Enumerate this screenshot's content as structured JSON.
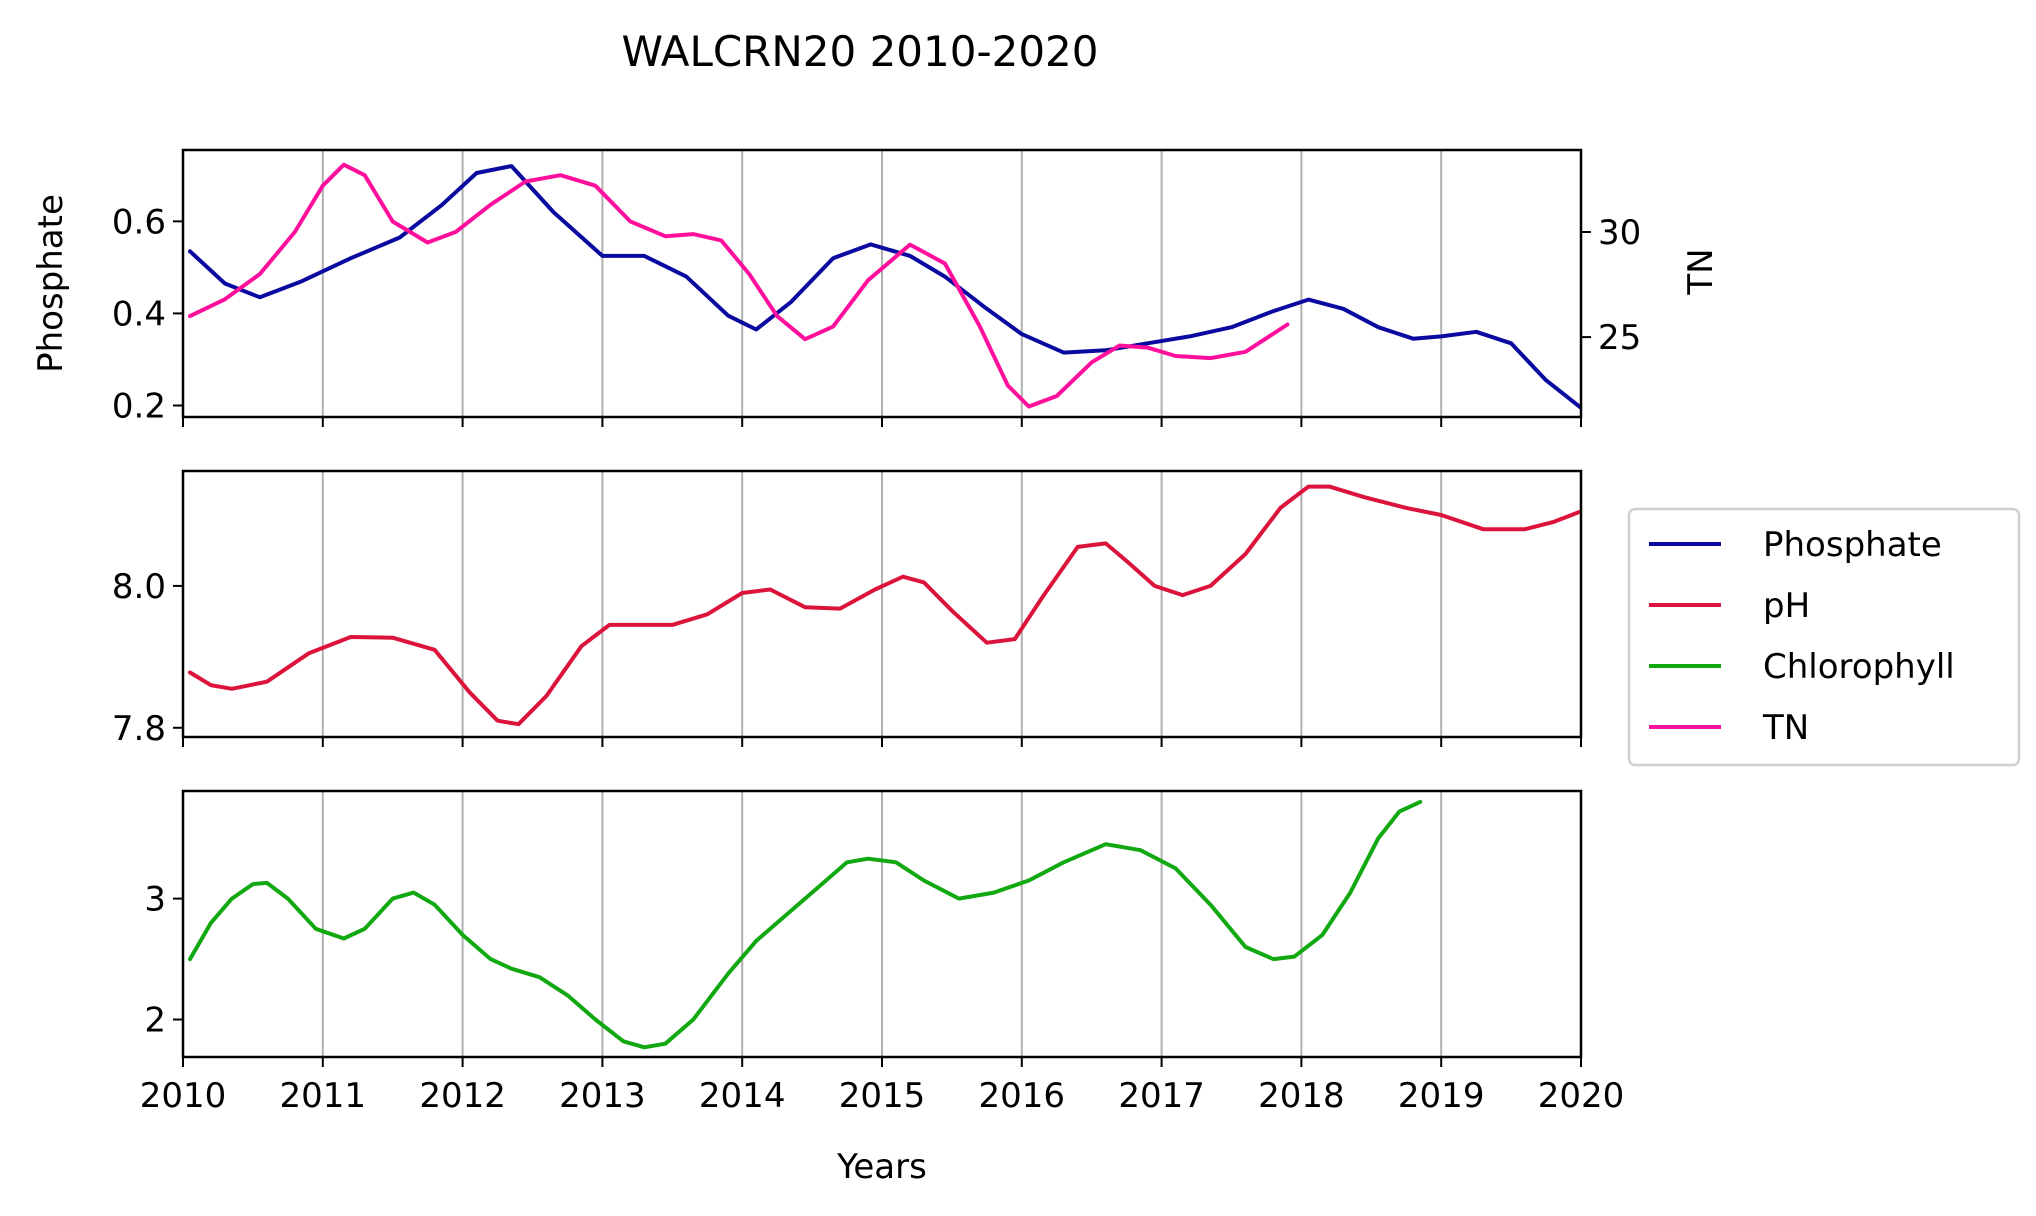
{
  "chart_data": {
    "type": "line",
    "title": "WALCRN20 2010-2020",
    "xlabel": "Years",
    "xlim": [
      2010,
      2020
    ],
    "xticks": [
      2010,
      2011,
      2012,
      2013,
      2014,
      2015,
      2016,
      2017,
      2018,
      2019,
      2020
    ],
    "xtick_labels": [
      "2010",
      "2011",
      "2012",
      "2013",
      "2014",
      "2015",
      "2016",
      "2017",
      "2018",
      "2019",
      "2020"
    ],
    "grid": "vertical",
    "legend": {
      "placement": "right",
      "entries": [
        {
          "label": "Phosphate",
          "color": "#0a0aa0"
        },
        {
          "label": "pH",
          "color": "#dc143c"
        },
        {
          "label": "Chlorophyll",
          "color": "#12a812"
        },
        {
          "label": "TN",
          "color": "#ff0f9c"
        }
      ]
    },
    "panels": [
      {
        "ylabel": "Phosphate",
        "ylim": [
          0.175,
          0.755
        ],
        "yticks": [
          0.2,
          0.4,
          0.6
        ],
        "ytick_labels": [
          "0.2",
          "0.4",
          "0.6"
        ],
        "secondary_axis": {
          "ylabel": "TN",
          "ylim": [
            21.2,
            33.9
          ],
          "yticks": [
            25,
            30
          ],
          "ytick_labels": [
            "25",
            "30"
          ]
        },
        "series": [
          {
            "name": "Phosphate",
            "color": "#0a0aa0",
            "axis": "left",
            "x": [
              2010.05,
              2010.3,
              2010.55,
              2010.85,
              2011.2,
              2011.55,
              2011.85,
              2012.1,
              2012.35,
              2012.65,
              2013.0,
              2013.3,
              2013.6,
              2013.9,
              2014.1,
              2014.35,
              2014.65,
              2014.92,
              2015.2,
              2015.45,
              2015.75,
              2016.0,
              2016.3,
              2016.6,
              2016.9,
              2017.2,
              2017.5,
              2017.8,
              2018.05,
              2018.3,
              2018.55,
              2018.8,
              2019.0,
              2019.25,
              2019.5,
              2019.75,
              2020.0
            ],
            "y": [
              0.535,
              0.465,
              0.435,
              0.47,
              0.52,
              0.565,
              0.635,
              0.705,
              0.72,
              0.62,
              0.525,
              0.525,
              0.48,
              0.395,
              0.365,
              0.425,
              0.52,
              0.55,
              0.525,
              0.48,
              0.41,
              0.355,
              0.315,
              0.32,
              0.335,
              0.35,
              0.37,
              0.405,
              0.43,
              0.41,
              0.37,
              0.345,
              0.35,
              0.36,
              0.335,
              0.255,
              0.195
            ]
          },
          {
            "name": "TN",
            "color": "#ff0f9c",
            "axis": "right",
            "x": [
              2010.05,
              2010.3,
              2010.55,
              2010.8,
              2011.0,
              2011.15,
              2011.3,
              2011.5,
              2011.75,
              2011.95,
              2012.2,
              2012.45,
              2012.7,
              2012.95,
              2013.2,
              2013.45,
              2013.65,
              2013.85,
              2014.05,
              2014.25,
              2014.45,
              2014.65,
              2014.9,
              2015.2,
              2015.45,
              2015.7,
              2015.9,
              2016.05,
              2016.25,
              2016.5,
              2016.7,
              2016.9,
              2017.1,
              2017.35,
              2017.6,
              2017.9
            ],
            "y": [
              26.0,
              26.8,
              28.0,
              30.0,
              32.2,
              33.2,
              32.7,
              30.5,
              29.5,
              30.0,
              31.3,
              32.4,
              32.7,
              32.2,
              30.5,
              29.8,
              29.9,
              29.6,
              28.0,
              26.0,
              24.9,
              25.5,
              27.7,
              29.4,
              28.5,
              25.5,
              22.7,
              21.7,
              22.2,
              23.8,
              24.6,
              24.5,
              24.1,
              24.0,
              24.3,
              25.6
            ]
          }
        ]
      },
      {
        "ylabel": "",
        "ylim": [
          7.787,
          8.162
        ],
        "yticks": [
          7.8,
          8.0
        ],
        "ytick_labels": [
          "7.8",
          "8.0"
        ],
        "series": [
          {
            "name": "pH",
            "color": "#dc143c",
            "axis": "left",
            "x": [
              2010.05,
              2010.2,
              2010.35,
              2010.6,
              2010.9,
              2011.2,
              2011.5,
              2011.8,
              2012.05,
              2012.25,
              2012.4,
              2012.6,
              2012.85,
              2013.05,
              2013.25,
              2013.5,
              2013.75,
              2014.0,
              2014.2,
              2014.45,
              2014.7,
              2014.95,
              2015.15,
              2015.3,
              2015.5,
              2015.75,
              2015.95,
              2016.15,
              2016.4,
              2016.6,
              2016.75,
              2016.95,
              2017.15,
              2017.35,
              2017.6,
              2017.85,
              2018.05,
              2018.2,
              2018.45,
              2018.75,
              2019.0,
              2019.3,
              2019.6,
              2019.8,
              2020.0
            ],
            "y": [
              7.878,
              7.86,
              7.855,
              7.865,
              7.905,
              7.928,
              7.927,
              7.91,
              7.85,
              7.81,
              7.805,
              7.845,
              7.915,
              7.945,
              7.945,
              7.945,
              7.96,
              7.99,
              7.995,
              7.97,
              7.968,
              7.995,
              8.013,
              8.005,
              7.965,
              7.92,
              7.925,
              7.985,
              8.055,
              8.06,
              8.035,
              8.0,
              7.987,
              8.0,
              8.045,
              8.11,
              8.14,
              8.14,
              8.125,
              8.11,
              8.1,
              8.08,
              8.08,
              8.09,
              8.105
            ]
          }
        ]
      },
      {
        "ylabel": "",
        "ylim": [
          1.69,
          3.89
        ],
        "yticks": [
          2,
          3
        ],
        "ytick_labels": [
          "2",
          "3"
        ],
        "series": [
          {
            "name": "Chlorophyll",
            "color": "#12a812",
            "axis": "left",
            "x": [
              2010.05,
              2010.2,
              2010.35,
              2010.5,
              2010.6,
              2010.75,
              2010.95,
              2011.15,
              2011.3,
              2011.5,
              2011.65,
              2011.8,
              2012.0,
              2012.2,
              2012.35,
              2012.55,
              2012.75,
              2012.95,
              2013.15,
              2013.3,
              2013.45,
              2013.65,
              2013.9,
              2014.1,
              2014.3,
              2014.55,
              2014.75,
              2014.9,
              2015.1,
              2015.3,
              2015.55,
              2015.8,
              2016.05,
              2016.3,
              2016.6,
              2016.85,
              2017.1,
              2017.35,
              2017.6,
              2017.8,
              2017.95,
              2018.15,
              2018.35,
              2018.55,
              2018.7,
              2018.85
            ],
            "y": [
              2.5,
              2.8,
              3.0,
              3.12,
              3.13,
              3.0,
              2.75,
              2.67,
              2.75,
              3.0,
              3.05,
              2.95,
              2.7,
              2.5,
              2.42,
              2.35,
              2.2,
              2.0,
              1.82,
              1.77,
              1.8,
              2.0,
              2.38,
              2.65,
              2.85,
              3.1,
              3.3,
              3.33,
              3.3,
              3.15,
              3.0,
              3.05,
              3.15,
              3.3,
              3.45,
              3.4,
              3.25,
              2.95,
              2.6,
              2.5,
              2.52,
              2.7,
              3.05,
              3.5,
              3.72,
              3.8
            ]
          }
        ]
      }
    ]
  }
}
